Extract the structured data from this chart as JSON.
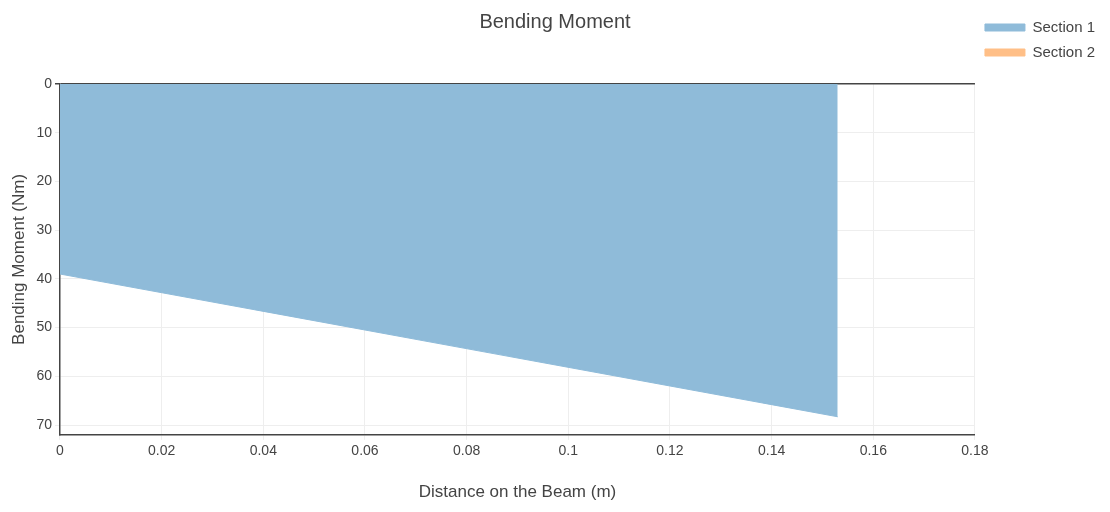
{
  "chart_data": {
    "type": "area",
    "title": "Bending Moment",
    "xlabel": "Distance on the Beam (m)",
    "ylabel": "Bending Moment (Nm)",
    "series": [
      {
        "name": "Section 1",
        "color": "#8fbbd9",
        "x": [
          0,
          0.153
        ],
        "values": [
          39,
          68.3
        ]
      },
      {
        "name": "Section 2",
        "color": "#ffbf87"
      }
    ],
    "xlim": [
      0,
      0.18
    ],
    "xticks": [
      0,
      0.02,
      0.04,
      0.06,
      0.08,
      0.1,
      0.12,
      0.14,
      0.16,
      0.18
    ],
    "ylim": [
      72,
      0
    ],
    "yticks": [
      0,
      10,
      20,
      30,
      40,
      50,
      60,
      70
    ],
    "grid": true,
    "legend": "top right",
    "marker": "none"
  }
}
